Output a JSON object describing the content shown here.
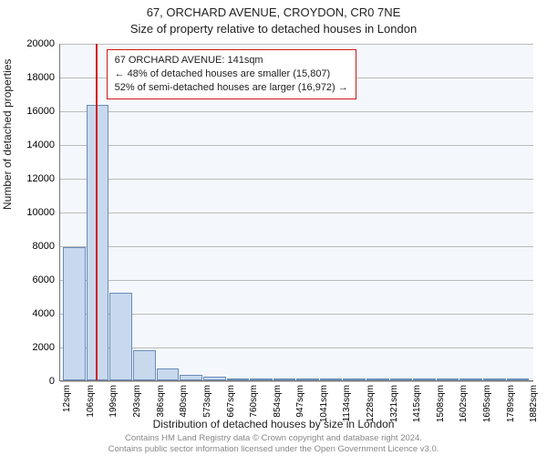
{
  "header": {
    "address": "67, ORCHARD AVENUE, CROYDON, CR0 7NE",
    "subtitle": "Size of property relative to detached houses in London"
  },
  "chart": {
    "type": "histogram",
    "background_color": "#f4f8fc",
    "grid_color": "#bbbbbb",
    "plot_border_color": "#777777",
    "bar_fill_color": "#c8d9ee",
    "bar_border_color": "#6a8cb8",
    "marker_color": "#d01818",
    "label_fontsize": 12,
    "tick_fontsize": 11,
    "ylabel": "Number of detached properties",
    "xlabel": "Distribution of detached houses by size in London",
    "ylim": [
      0,
      20000
    ],
    "yticks": [
      0,
      2000,
      4000,
      6000,
      8000,
      10000,
      12000,
      14000,
      16000,
      18000,
      20000
    ],
    "x_range_sqm": [
      0,
      1900
    ],
    "x_tick_labels": [
      "12sqm",
      "106sqm",
      "199sqm",
      "293sqm",
      "386sqm",
      "480sqm",
      "573sqm",
      "667sqm",
      "760sqm",
      "854sqm",
      "947sqm",
      "1041sqm",
      "1134sqm",
      "1228sqm",
      "1321sqm",
      "1415sqm",
      "1508sqm",
      "1602sqm",
      "1695sqm",
      "1789sqm",
      "1882sqm"
    ],
    "x_tick_values": [
      12,
      106,
      199,
      293,
      386,
      480,
      573,
      667,
      760,
      854,
      947,
      1041,
      1134,
      1228,
      1321,
      1415,
      1508,
      1602,
      1695,
      1789,
      1882
    ],
    "marker_value_sqm": 141,
    "bars": [
      {
        "x0": 12,
        "x1": 106,
        "count": 7900
      },
      {
        "x0": 106,
        "x1": 199,
        "count": 16300
      },
      {
        "x0": 199,
        "x1": 293,
        "count": 5200
      },
      {
        "x0": 293,
        "x1": 386,
        "count": 1800
      },
      {
        "x0": 386,
        "x1": 480,
        "count": 700
      },
      {
        "x0": 480,
        "x1": 573,
        "count": 300
      },
      {
        "x0": 573,
        "x1": 667,
        "count": 200
      },
      {
        "x0": 667,
        "x1": 760,
        "count": 120
      },
      {
        "x0": 760,
        "x1": 854,
        "count": 100
      },
      {
        "x0": 854,
        "x1": 947,
        "count": 60
      },
      {
        "x0": 947,
        "x1": 1041,
        "count": 50
      },
      {
        "x0": 1041,
        "x1": 1134,
        "count": 40
      },
      {
        "x0": 1134,
        "x1": 1228,
        "count": 30
      },
      {
        "x0": 1228,
        "x1": 1321,
        "count": 25
      },
      {
        "x0": 1321,
        "x1": 1415,
        "count": 20
      },
      {
        "x0": 1415,
        "x1": 1508,
        "count": 15
      },
      {
        "x0": 1508,
        "x1": 1602,
        "count": 12
      },
      {
        "x0": 1602,
        "x1": 1695,
        "count": 10
      },
      {
        "x0": 1695,
        "x1": 1789,
        "count": 8
      },
      {
        "x0": 1789,
        "x1": 1882,
        "count": 6
      }
    ]
  },
  "callout": {
    "line1": "67 ORCHARD AVENUE: 141sqm",
    "line2": "← 48% of detached houses are smaller (15,807)",
    "line3": "52% of semi-detached houses are larger (16,972) →",
    "border_color": "#d01818",
    "background_color": "#ffffff"
  },
  "footer": {
    "line1": "Contains HM Land Registry data © Crown copyright and database right 2024.",
    "line2": "Contains public sector information licensed under the Open Government Licence v3.0."
  }
}
